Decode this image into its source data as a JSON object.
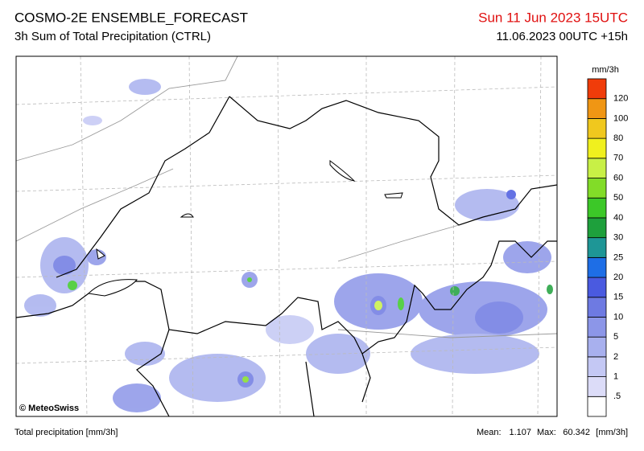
{
  "header": {
    "title": "COSMO-2E ENSEMBLE_FORECAST",
    "subtitle": "3h Sum of Total Precipitation (CTRL)",
    "valid_time": "Sun 11 Jun 2023 15UTC",
    "run": "11.06.2023 00UTC +15h"
  },
  "map": {
    "credit": "© MeteoSwiss"
  },
  "legend": {
    "unit": "mm/3h",
    "labels": [
      ".5",
      "1",
      "2",
      "5",
      "10",
      "15",
      "20",
      "25",
      "30",
      "40",
      "50",
      "60",
      "70",
      "80",
      "100",
      "120"
    ],
    "colors": [
      "#ffffff",
      "#dcdcf8",
      "#c4c8f4",
      "#a8b0ee",
      "#8c96e8",
      "#6e7ae2",
      "#4a5ae0",
      "#1e6ee6",
      "#1e9696",
      "#1ea03c",
      "#3cc828",
      "#82dc28",
      "#c8f046",
      "#f0f01e",
      "#f0c81e",
      "#f09614",
      "#f03c0a"
    ]
  },
  "footer": {
    "left": "Total precipitation [mm/3h]",
    "mean_label": "Mean:",
    "mean": "1.107",
    "max_label": "Max:",
    "max": "60.342",
    "unit": "[mm/3h]"
  }
}
